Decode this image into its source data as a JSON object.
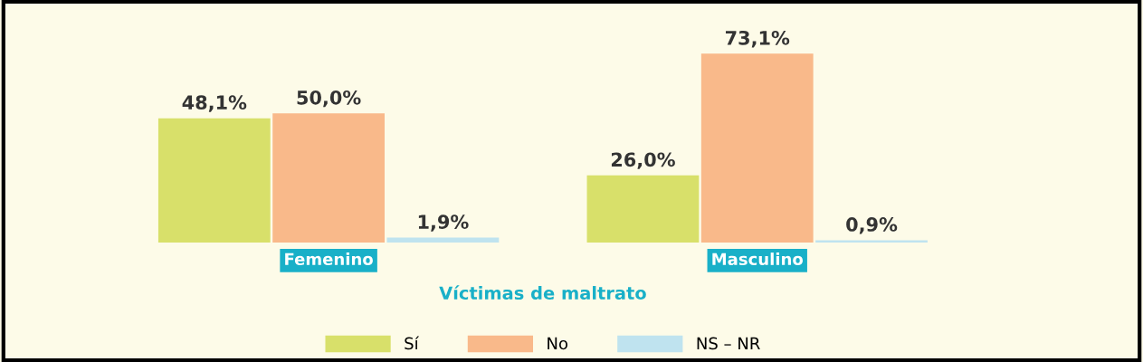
{
  "chart_data": {
    "type": "bar",
    "categories": [
      "Femenino",
      "Masculino"
    ],
    "xlabel": "Víctimas de maltrato",
    "series": [
      {
        "name": "Sí",
        "color": "#d8e06a",
        "values": [
          48.1,
          26.0
        ],
        "value_labels": [
          "48,1%",
          "26,0%"
        ]
      },
      {
        "name": "No",
        "color": "#f9b98a",
        "values": [
          50.0,
          73.1
        ],
        "value_labels": [
          "50,0%",
          "73,1%"
        ]
      },
      {
        "name": "NS – NR",
        "color": "#bfe3ef",
        "values": [
          1.9,
          0.9
        ],
        "value_labels": [
          "1,9%",
          "0,9%"
        ]
      }
    ],
    "tick_labels": "x",
    "legend": "bottom",
    "grid": false
  }
}
